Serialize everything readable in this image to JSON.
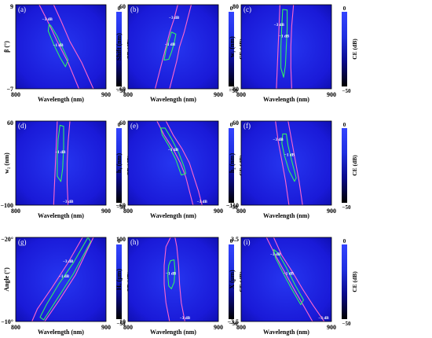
{
  "figure": {
    "colorbar": {
      "top_label": "0",
      "bottom_label": "−50",
      "axis_label": "CE (dB)",
      "colors": [
        "#000000",
        "#0a0a8a",
        "#1f2fe0",
        "#3344ff"
      ]
    },
    "contour_colors": {
      "minus_3dB": "#ff66cc",
      "minus_1dB": "#33ee66"
    },
    "panel_background": "#1a1ad8"
  },
  "chart_data": [
    {
      "type": "heatmap",
      "panel_tag": "(a)",
      "xlabel": "Wavelength (nm)",
      "ylabel": "β (°)",
      "xlim": [
        800,
        900
      ],
      "ylim": [
        -7,
        9
      ],
      "x_tick_labels": [
        "800",
        "900"
      ],
      "y_tick_labels": [
        "9",
        "−7"
      ],
      "colorbar_range_dB": [
        -50,
        0
      ],
      "contour_labels": [
        "−3 dB",
        "−1 dB"
      ],
      "contours": [
        {
          "level_dB": -3,
          "points": [
            [
              826,
              9
            ],
            [
              835,
              6
            ],
            [
              846,
              2
            ],
            [
              858,
              -2
            ],
            [
              870,
              -7
            ],
            [
              886,
              -7
            ],
            [
              873,
              -2
            ],
            [
              860,
              2
            ],
            [
              850,
              6
            ],
            [
              842,
              9
            ]
          ]
        },
        {
          "level_dB": -1,
          "points": [
            [
              839,
              5
            ],
            [
              846,
              3
            ],
            [
              854,
              0
            ],
            [
              858,
              -1.5
            ],
            [
              855,
              -2.8
            ],
            [
              849,
              -1
            ],
            [
              842,
              1.5
            ],
            [
              836,
              4
            ],
            [
              837,
              5.3
            ]
          ]
        }
      ]
    },
    {
      "type": "heatmap",
      "panel_tag": "(b)",
      "xlabel": "Wavelength (nm)",
      "ylabel": "Shift (nm)",
      "xlim": [
        800,
        900
      ],
      "ylim": [
        -60,
        60
      ],
      "x_tick_labels": [
        "800",
        "900"
      ],
      "y_tick_labels": [
        "60",
        "−60"
      ],
      "colorbar_range_dB": [
        -50,
        0
      ],
      "contour_labels": [
        "−3 dB",
        "−1 dB"
      ],
      "contours": [
        {
          "level_dB": -3,
          "points": [
            [
              855,
              60
            ],
            [
              851,
              40
            ],
            [
              846,
              20
            ],
            [
              842,
              0
            ],
            [
              838,
              -20
            ],
            [
              834,
              -40
            ],
            [
              830,
              -60
            ],
            [
              846,
              -60
            ],
            [
              850,
              -40
            ],
            [
              854,
              -20
            ],
            [
              857,
              0
            ],
            [
              862,
              20
            ],
            [
              866,
              40
            ],
            [
              870,
              60
            ]
          ]
        },
        {
          "level_dB": -1,
          "points": [
            [
              848,
              21
            ],
            [
              853,
              18
            ],
            [
              851,
              5
            ],
            [
              848,
              -8
            ],
            [
              845,
              -18
            ],
            [
              840,
              -19
            ],
            [
              842,
              -5
            ],
            [
              845,
              8
            ]
          ]
        }
      ]
    },
    {
      "type": "heatmap",
      "panel_tag": "(c)",
      "xlabel": "Wavelength (nm)",
      "ylabel": "w₁ (nm)",
      "xlim": [
        800,
        900
      ],
      "ylim": [
        -80,
        80
      ],
      "x_tick_labels": [
        "800",
        "900"
      ],
      "y_tick_labels": [
        "80",
        "−80"
      ],
      "colorbar_range_dB": [
        -50,
        0
      ],
      "contour_labels": [
        "−3 dB",
        "−1 dB"
      ],
      "contours": [
        {
          "level_dB": -3,
          "points": [
            [
              843,
              80
            ],
            [
              842,
              40
            ],
            [
              841,
              0
            ],
            [
              840,
              -40
            ],
            [
              839,
              -80
            ],
            [
              856,
              -80
            ],
            [
              855,
              -40
            ],
            [
              855,
              0
            ],
            [
              856,
              40
            ],
            [
              858,
              80
            ]
          ]
        },
        {
          "level_dB": -1,
          "points": [
            [
              846,
              71
            ],
            [
              851,
              70
            ],
            [
              851,
              35
            ],
            [
              850,
              0
            ],
            [
              849,
              -35
            ],
            [
              847,
              -58
            ],
            [
              844,
              -40
            ],
            [
              844,
              0
            ],
            [
              845,
              40
            ]
          ]
        }
      ]
    },
    {
      "type": "heatmap",
      "panel_tag": "(d)",
      "xlabel": "Wavelength (nm)",
      "ylabel": "w₂ (nm)",
      "xlim": [
        800,
        900
      ],
      "ylim": [
        -100,
        60
      ],
      "x_tick_labels": [
        "800",
        "900"
      ],
      "y_tick_labels": [
        "60",
        "−100"
      ],
      "colorbar_range_dB": [
        -50,
        0
      ],
      "contour_labels": [
        "−1 dB",
        "−3 dB"
      ],
      "contours": [
        {
          "level_dB": -3,
          "points": [
            [
              846,
              60
            ],
            [
              845,
              20
            ],
            [
              844,
              -20
            ],
            [
              843,
              -60
            ],
            [
              842,
              -100
            ],
            [
              858,
              -100
            ],
            [
              857,
              -60
            ],
            [
              857,
              -20
            ],
            [
              858,
              20
            ],
            [
              860,
              60
            ]
          ]
        },
        {
          "level_dB": -1,
          "points": [
            [
              849,
              52
            ],
            [
              853,
              50
            ],
            [
              853,
              10
            ],
            [
              852,
              -30
            ],
            [
              850,
              -55
            ],
            [
              846,
              -45
            ],
            [
              846,
              -10
            ],
            [
              847,
              25
            ]
          ]
        }
      ]
    },
    {
      "type": "heatmap",
      "panel_tag": "(e)",
      "xlabel": "Wavelength (nm)",
      "ylabel": "h₁ (nm)",
      "xlim": [
        800,
        900
      ],
      "ylim": [
        -60,
        60
      ],
      "x_tick_labels": [
        "800",
        "900"
      ],
      "y_tick_labels": [
        "60",
        "−60"
      ],
      "colorbar_range_dB": [
        -50,
        0
      ],
      "contour_labels": [
        "−1 dB",
        "−3 dB"
      ],
      "contours": [
        {
          "level_dB": -3,
          "points": [
            [
              832,
              60
            ],
            [
              840,
              40
            ],
            [
              850,
              20
            ],
            [
              858,
              0
            ],
            [
              864,
              -20
            ],
            [
              868,
              -40
            ],
            [
              872,
              -60
            ],
            [
              882,
              -60
            ],
            [
              878,
              -40
            ],
            [
              873,
              -20
            ],
            [
              868,
              0
            ],
            [
              860,
              20
            ],
            [
              850,
              40
            ],
            [
              842,
              60
            ]
          ]
        },
        {
          "level_dB": -1,
          "points": [
            [
              836,
              50
            ],
            [
              841,
              50
            ],
            [
              848,
              35
            ],
            [
              856,
              15
            ],
            [
              862,
              -5
            ],
            [
              864,
              -15
            ],
            [
              859,
              -17
            ],
            [
              853,
              5
            ],
            [
              845,
              25
            ],
            [
              838,
              40
            ]
          ]
        }
      ]
    },
    {
      "type": "heatmap",
      "panel_tag": "(f)",
      "xlabel": "Wavelength (nm)",
      "ylabel": "h₂ (nm)",
      "xlim": [
        800,
        900
      ],
      "ylim": [
        -110,
        60
      ],
      "x_tick_labels": [
        "800",
        "900"
      ],
      "y_tick_labels": [
        "60",
        "−110"
      ],
      "colorbar_range_dB": [
        -50,
        0
      ],
      "contour_labels": [
        "−3 dB",
        "−1 dB"
      ],
      "contours": [
        {
          "level_dB": -3,
          "points": [
            [
              838,
              60
            ],
            [
              841,
              20
            ],
            [
              845,
              -20
            ],
            [
              849,
              -60
            ],
            [
              853,
              -110
            ],
            [
              868,
              -110
            ],
            [
              864,
              -60
            ],
            [
              860,
              -20
            ],
            [
              856,
              20
            ],
            [
              852,
              60
            ]
          ]
        },
        {
          "level_dB": -1,
          "points": [
            [
              846,
              34
            ],
            [
              850,
              34
            ],
            [
              852,
              10
            ],
            [
              856,
              -20
            ],
            [
              861,
              -55
            ],
            [
              859,
              -62
            ],
            [
              853,
              -40
            ],
            [
              848,
              -10
            ],
            [
              845,
              15
            ]
          ]
        }
      ]
    },
    {
      "type": "heatmap",
      "panel_tag": "(g)",
      "xlabel": "Wavelength (nm)",
      "ylabel": "Angle (°)",
      "xlim": [
        800,
        900
      ],
      "ylim": [
        -10,
        -20
      ],
      "x_tick_labels": [
        "800",
        "900"
      ],
      "y_tick_labels": [
        "−20°",
        "−10°"
      ],
      "colorbar_range_dB": [
        -50,
        0
      ],
      "contour_labels": [
        "−3 dB",
        "−1 dB"
      ],
      "contours": [
        {
          "level_dB": -3,
          "points": [
            [
              874,
              -20
            ],
            [
              858,
              -17
            ],
            [
              840,
              -14
            ],
            [
              824,
              -11.5
            ],
            [
              818,
              -10
            ],
            [
              832,
              -10
            ],
            [
              848,
              -12.5
            ],
            [
              866,
              -15.5
            ],
            [
              886,
              -20
            ]
          ]
        },
        {
          "level_dB": -1,
          "points": [
            [
              880,
              -20
            ],
            [
              864,
              -17
            ],
            [
              848,
              -14.5
            ],
            [
              834,
              -12
            ],
            [
              827,
              -10.5
            ],
            [
              831,
              -10.2
            ],
            [
              846,
              -12.7
            ],
            [
              864,
              -15.7
            ],
            [
              883,
              -19.5
            ]
          ]
        }
      ]
    },
    {
      "type": "heatmap",
      "panel_tag": "(h)",
      "xlabel": "Wavelength (nm)",
      "ylabel": "Hᵥ (μm)",
      "xlim": [
        800,
        900
      ],
      "ylim": [
        10,
        100
      ],
      "x_tick_labels": [
        "800",
        "900"
      ],
      "y_tick_labels": [
        "100",
        "10"
      ],
      "colorbar_range_dB": [
        -50,
        0
      ],
      "contour_labels": [
        "−1 dB",
        "−3 dB"
      ],
      "contours": [
        {
          "level_dB": -3,
          "points": [
            [
              847,
              100
            ],
            [
              842,
              90
            ],
            [
              840,
              70
            ],
            [
              840,
              50
            ],
            [
              842,
              30
            ],
            [
              846,
              10
            ],
            [
              863,
              10
            ],
            [
              859,
              30
            ],
            [
              857,
              50
            ],
            [
              856,
              70
            ],
            [
              854,
              90
            ],
            [
              852,
              100
            ]
          ]
        },
        {
          "level_dB": -1,
          "points": [
            [
              847,
              75
            ],
            [
              851,
              76
            ],
            [
              852,
              65
            ],
            [
              851,
              52
            ],
            [
              848,
              45
            ],
            [
              845,
              48
            ],
            [
              844,
              60
            ],
            [
              845,
              70
            ]
          ]
        }
      ]
    },
    {
      "type": "heatmap",
      "panel_tag": "(i)",
      "xlabel": "Wavelength (nm)",
      "ylabel": "X (μm)",
      "xlim": [
        800,
        900
      ],
      "ylim": [
        -3.5,
        3.5
      ],
      "x_tick_labels": [
        "800",
        "900"
      ],
      "y_tick_labels": [
        "3.5",
        "−3.5"
      ],
      "colorbar_range_dB": [
        -50,
        0
      ],
      "contour_labels": [
        "−3 dB",
        "−1 dB",
        "−3 dB"
      ],
      "contours": [
        {
          "level_dB": -3,
          "points": [
            [
              828,
              3.5
            ],
            [
              838,
              2
            ],
            [
              849,
              0.5
            ],
            [
              860,
              -1
            ],
            [
              870,
              -2.3
            ],
            [
              879,
              -3.5
            ],
            [
              892,
              -3.5
            ],
            [
              880,
              -2.2
            ],
            [
              868,
              -0.8
            ],
            [
              857,
              0.6
            ],
            [
              845,
              2
            ],
            [
              836,
              3.5
            ]
          ]
        },
        {
          "level_dB": -1,
          "points": [
            [
              836,
              2.5
            ],
            [
              841,
              2.2
            ],
            [
              850,
              1.0
            ],
            [
              860,
              -0.5
            ],
            [
              869,
              -1.7
            ],
            [
              866,
              -2.1
            ],
            [
              856,
              -0.8
            ],
            [
              846,
              0.6
            ],
            [
              838,
              1.8
            ]
          ]
        }
      ]
    }
  ]
}
